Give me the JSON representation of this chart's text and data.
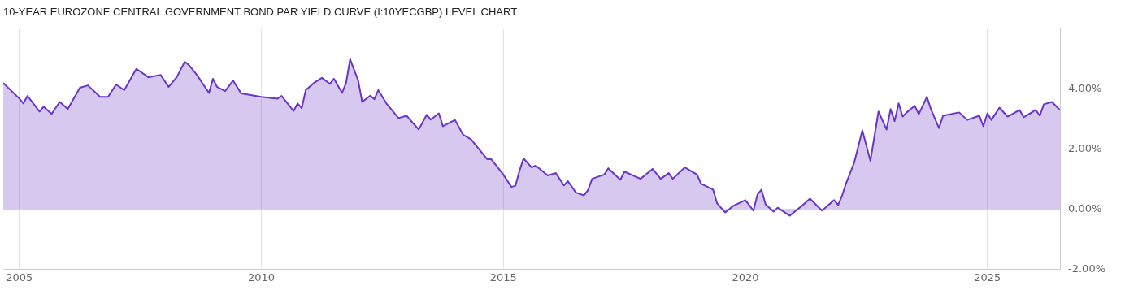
{
  "chart_data": {
    "type": "area",
    "title": "10-YEAR EUROZONE CENTRAL GOVERNMENT BOND PAR YIELD CURVE (I:10YECGBP) LEVEL CHART",
    "x": [
      "2004-09",
      "2005-01",
      "2005-02",
      "2005-03",
      "2005-06",
      "2005-07",
      "2005-09",
      "2005-11",
      "2006-01",
      "2006-04",
      "2006-06",
      "2006-09",
      "2006-11",
      "2007-01",
      "2007-03",
      "2007-06",
      "2007-09",
      "2007-12",
      "2008-02",
      "2008-04",
      "2008-06",
      "2008-07",
      "2008-09",
      "2008-12",
      "2009-01",
      "2009-02",
      "2009-04",
      "2009-06",
      "2009-08",
      "2010-01",
      "2010-05",
      "2010-06",
      "2010-09",
      "2010-10",
      "2010-11",
      "2010-12",
      "2011-02",
      "2011-04",
      "2011-06",
      "2011-07",
      "2011-09",
      "2011-10",
      "2011-11",
      "2012-01",
      "2012-02",
      "2012-04",
      "2012-05",
      "2012-06",
      "2012-08",
      "2012-11",
      "2013-01",
      "2013-04",
      "2013-06",
      "2013-07",
      "2013-09",
      "2013-10",
      "2014-01",
      "2014-03",
      "2014-05",
      "2014-09",
      "2014-10",
      "2015-01",
      "2015-03",
      "2015-04",
      "2015-05",
      "2015-06",
      "2015-08",
      "2015-09",
      "2015-12",
      "2016-02",
      "2016-04",
      "2016-05",
      "2016-07",
      "2016-09",
      "2016-10",
      "2016-11",
      "2017-02",
      "2017-03",
      "2017-06",
      "2017-07",
      "2017-11",
      "2018-02",
      "2018-04",
      "2018-06",
      "2018-07",
      "2018-10",
      "2019-01",
      "2019-02",
      "2019-05",
      "2019-06",
      "2019-08",
      "2019-10",
      "2020-01",
      "2020-03",
      "2020-04",
      "2020-05",
      "2020-06",
      "2020-08",
      "2020-09",
      "2020-12",
      "2021-01",
      "2021-03",
      "2021-05",
      "2021-08",
      "2021-11",
      "2021-12",
      "2022-01",
      "2022-02",
      "2022-04",
      "2022-06",
      "2022-08",
      "2022-10",
      "2022-12",
      "2023-01",
      "2023-02",
      "2023-03",
      "2023-04",
      "2023-05",
      "2023-07",
      "2023-08",
      "2023-10",
      "2023-11",
      "2024-01",
      "2024-02",
      "2024-06",
      "2024-08",
      "2024-11",
      "2024-12",
      "2025-01",
      "2025-02",
      "2025-04",
      "2025-06",
      "2025-09",
      "2025-10",
      "2026-01",
      "2026-02",
      "2026-03",
      "2026-05",
      "2026-07"
    ],
    "series": [
      {
        "color": "#6a35c9",
        "values": [
          4.2,
          3.68,
          3.52,
          3.77,
          3.25,
          3.41,
          3.17,
          3.57,
          3.33,
          4.04,
          4.12,
          3.74,
          3.74,
          4.15,
          3.96,
          4.67,
          4.39,
          4.47,
          4.07,
          4.39,
          4.91,
          4.8,
          4.47,
          3.87,
          4.34,
          4.07,
          3.93,
          4.28,
          3.85,
          3.74,
          3.68,
          3.77,
          3.27,
          3.52,
          3.36,
          3.96,
          4.2,
          4.37,
          4.17,
          4.34,
          3.87,
          4.2,
          4.99,
          4.28,
          3.57,
          3.78,
          3.66,
          3.96,
          3.52,
          3.03,
          3.11,
          2.65,
          3.14,
          2.98,
          3.19,
          2.76,
          2.97,
          2.48,
          2.32,
          1.66,
          1.66,
          1.15,
          0.74,
          0.78,
          1.28,
          1.69,
          1.39,
          1.45,
          1.12,
          1.2,
          0.79,
          0.93,
          0.55,
          0.46,
          0.64,
          1.01,
          1.15,
          1.36,
          0.98,
          1.25,
          1.01,
          1.34,
          1.01,
          1.2,
          1.01,
          1.39,
          1.15,
          0.85,
          0.65,
          0.19,
          -0.11,
          0.11,
          0.3,
          -0.05,
          0.49,
          0.65,
          0.16,
          -0.08,
          0.05,
          -0.22,
          -0.11,
          0.11,
          0.35,
          -0.05,
          0.3,
          0.14,
          0.46,
          0.87,
          1.56,
          2.62,
          1.61,
          3.25,
          2.65,
          3.33,
          2.93,
          3.52,
          3.08,
          3.22,
          3.44,
          3.16,
          3.74,
          3.33,
          2.7,
          3.11,
          3.22,
          2.97,
          3.11,
          2.76,
          3.19,
          2.97,
          3.38,
          3.08,
          3.3,
          3.06,
          3.3,
          3.11,
          3.49,
          3.57,
          3.3
        ]
      }
    ],
    "xlim": [
      "2004-09",
      "2026-07"
    ],
    "xticks": [
      "2005",
      "2010",
      "2015",
      "2020",
      "2025"
    ],
    "ylim": [
      -2,
      6
    ],
    "yticks": [
      {
        "value": -2,
        "label": "-2.00%"
      },
      {
        "value": 0,
        "label": "0.00%"
      },
      {
        "value": 2,
        "label": "2.00%"
      },
      {
        "value": 4,
        "label": "4.00%"
      }
    ],
    "grid": true
  }
}
